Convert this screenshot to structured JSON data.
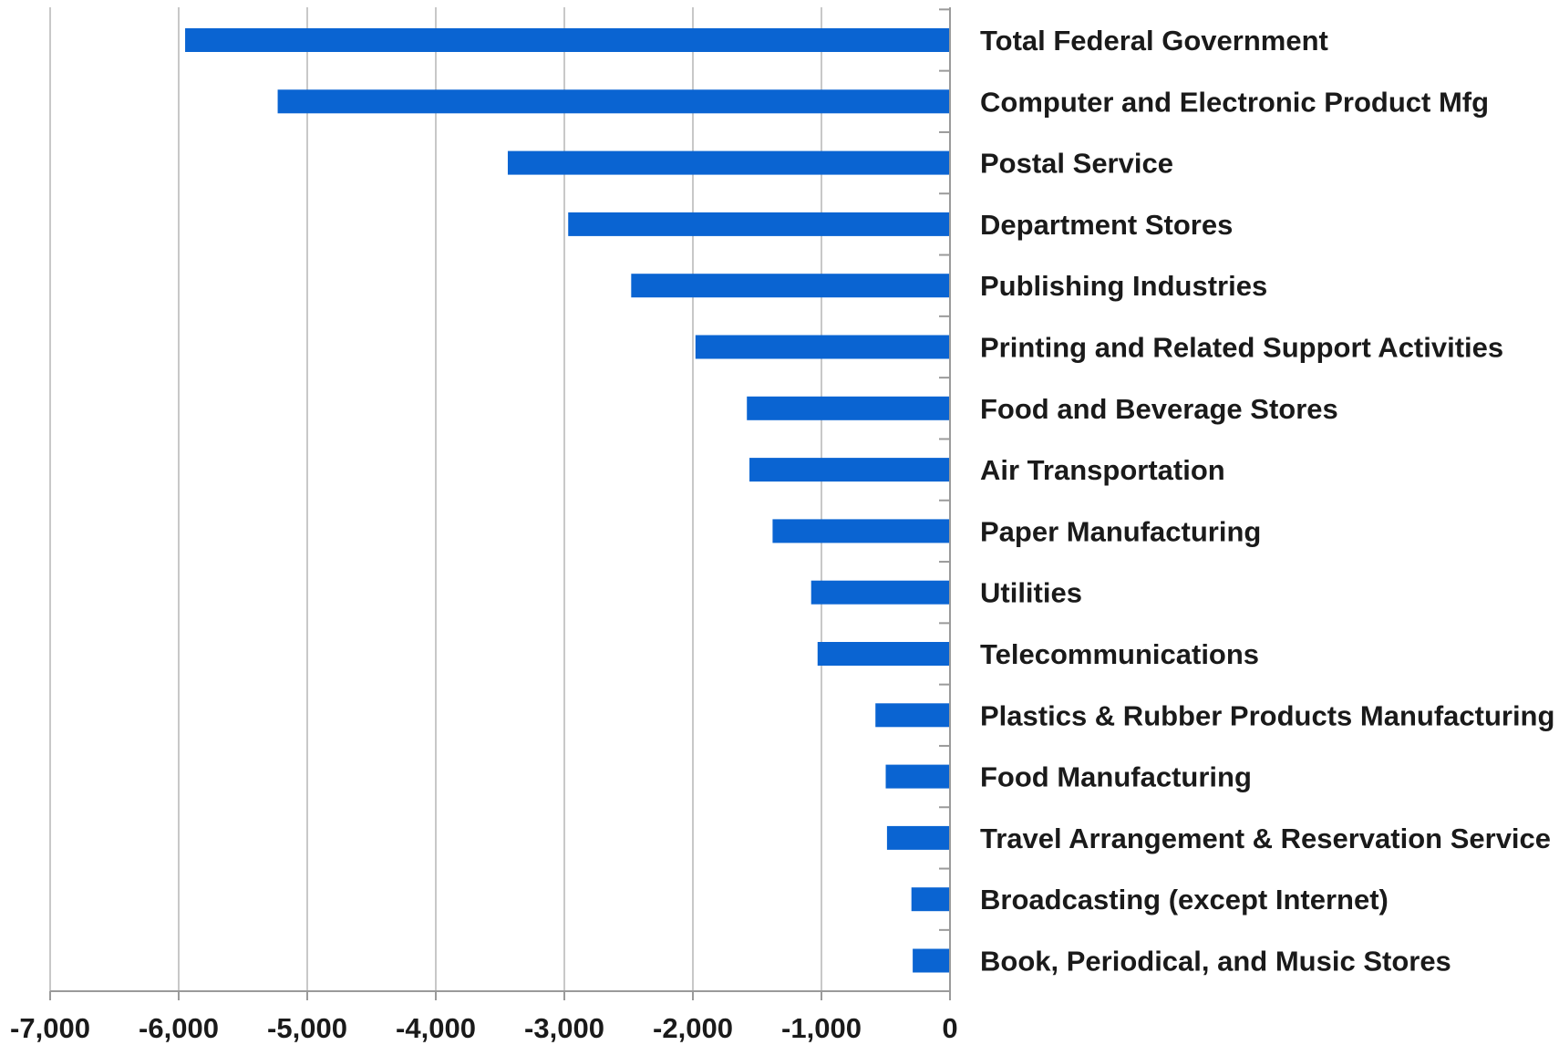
{
  "chart_data": {
    "type": "bar",
    "orientation": "horizontal",
    "categories": [
      "Total Federal Government",
      "Computer and Electronic Product Mfg",
      "Postal Service",
      "Department Stores",
      "Publishing Industries",
      "Printing and Related Support Activities",
      "Food and Beverage Stores",
      "Air Transportation",
      "Paper Manufacturing",
      "Utilities",
      "Telecommunications",
      "Plastics & Rubber Products Manufacturing",
      "Food Manufacturing",
      "Travel Arrangement & Reservation Service",
      "Broadcasting (except Internet)",
      "Book, Periodical, and Music Stores"
    ],
    "values": [
      -5950,
      -5230,
      -3440,
      -2970,
      -2480,
      -1980,
      -1580,
      -1560,
      -1380,
      -1080,
      -1030,
      -580,
      -500,
      -490,
      -300,
      -290
    ],
    "xlim": [
      -7000,
      0
    ],
    "xticks": [
      -7000,
      -6000,
      -5000,
      -4000,
      -3000,
      -2000,
      -1000,
      0
    ],
    "xtick_labels": [
      "-7,000",
      "-6,000",
      "-5,000",
      "-4,000",
      "-3,000",
      "-2,000",
      "-1,000",
      "0"
    ],
    "bar_color": "#0a64d2",
    "grid": true,
    "title": "",
    "xlabel": "",
    "ylabel": ""
  }
}
